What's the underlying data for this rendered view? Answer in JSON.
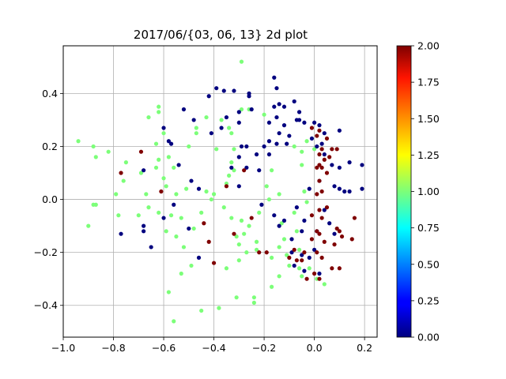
{
  "chart_data": {
    "type": "scatter",
    "title": "2017/06/{03, 06, 13} 2d plot",
    "xlabel": "",
    "ylabel": "",
    "xlim": [
      -1.0,
      0.25
    ],
    "ylim": [
      -0.52,
      0.58
    ],
    "xticks": [
      -1.0,
      -0.8,
      -0.6,
      -0.4,
      -0.2,
      0.0,
      0.2
    ],
    "xtick_labels": [
      "−1.0",
      "−0.8",
      "−0.6",
      "−0.4",
      "−0.2",
      "0.0",
      "0.2"
    ],
    "yticks": [
      -0.4,
      -0.2,
      0.0,
      0.2,
      0.4
    ],
    "ytick_labels": [
      "−0.4",
      "−0.2",
      "0.0",
      "0.2",
      "0.4"
    ],
    "grid": true,
    "colorbar": {
      "min": 0.0,
      "max": 2.0,
      "colormap": "jet",
      "ticks": [
        0.0,
        0.25,
        0.5,
        0.75,
        1.0,
        1.25,
        1.5,
        1.75,
        2.0
      ],
      "tick_labels": [
        "0.00",
        "0.25",
        "0.50",
        "0.75",
        "1.00",
        "1.25",
        "1.50",
        "1.75",
        "2.00"
      ]
    },
    "colors": {
      "0": "#00007f",
      "1": "#7cff79",
      "2": "#7f0000"
    },
    "points": [
      [
        -0.94,
        0.22,
        1
      ],
      [
        -0.88,
        0.2,
        1
      ],
      [
        -0.87,
        0.16,
        1
      ],
      [
        -0.82,
        0.18,
        1
      ],
      [
        -0.87,
        -0.02,
        1
      ],
      [
        -0.88,
        -0.02,
        1
      ],
      [
        -0.9,
        -0.1,
        1
      ],
      [
        -0.79,
        0.02,
        1
      ],
      [
        -0.78,
        -0.06,
        1
      ],
      [
        -0.7,
        -0.06,
        1
      ],
      [
        -0.66,
        0.31,
        1
      ],
      [
        -0.62,
        0.35,
        1
      ],
      [
        -0.62,
        0.33,
        1
      ],
      [
        -0.6,
        0.25,
        1
      ],
      [
        -0.63,
        0.21,
        1
      ],
      [
        -0.62,
        0.15,
        1
      ],
      [
        -0.58,
        0.16,
        1
      ],
      [
        -0.63,
        0.12,
        1
      ],
      [
        -0.6,
        0.08,
        1
      ],
      [
        -0.56,
        0.12,
        1
      ],
      [
        -0.67,
        0.02,
        1
      ],
      [
        -0.66,
        -0.03,
        1
      ],
      [
        -0.62,
        -0.05,
        1
      ],
      [
        -0.57,
        -0.06,
        1
      ],
      [
        -0.53,
        -0.07,
        1
      ],
      [
        -0.55,
        0.02,
        1
      ],
      [
        -0.59,
        -0.12,
        1
      ],
      [
        -0.55,
        -0.14,
        1
      ],
      [
        -0.52,
        -0.18,
        1
      ],
      [
        -0.48,
        -0.11,
        1
      ],
      [
        -0.47,
        0.25,
        1
      ],
      [
        -0.47,
        0.27,
        1
      ],
      [
        -0.43,
        0.31,
        1
      ],
      [
        -0.37,
        0.3,
        1
      ],
      [
        -0.34,
        0.27,
        1
      ],
      [
        -0.33,
        0.25,
        1
      ],
      [
        -0.32,
        0.19,
        1
      ],
      [
        -0.29,
        0.52,
        1
      ],
      [
        -0.29,
        0.34,
        1
      ],
      [
        -0.39,
        0.19,
        1
      ],
      [
        -0.33,
        0.14,
        1
      ],
      [
        -0.32,
        0.11,
        1
      ],
      [
        -0.35,
        0.06,
        1
      ],
      [
        -0.4,
        0.02,
        1
      ],
      [
        -0.41,
        0.0,
        1
      ],
      [
        -0.36,
        -0.03,
        1
      ],
      [
        -0.33,
        -0.07,
        1
      ],
      [
        -0.29,
        -0.08,
        1
      ],
      [
        -0.31,
        -0.14,
        1
      ],
      [
        -0.3,
        -0.17,
        1
      ],
      [
        -0.28,
        -0.13,
        1
      ],
      [
        -0.26,
        -0.1,
        1
      ],
      [
        -0.23,
        -0.16,
        1
      ],
      [
        -0.23,
        -0.19,
        1
      ],
      [
        -0.27,
        -0.2,
        1
      ],
      [
        -0.3,
        -0.23,
        1
      ],
      [
        -0.35,
        -0.26,
        1
      ],
      [
        -0.38,
        -0.41,
        1
      ],
      [
        -0.31,
        -0.37,
        1
      ],
      [
        -0.24,
        -0.37,
        1
      ],
      [
        -0.24,
        -0.39,
        1
      ],
      [
        -0.17,
        -0.33,
        1
      ],
      [
        -0.2,
        0.32,
        1
      ],
      [
        -0.19,
        0.05,
        1
      ],
      [
        -0.14,
        0.02,
        1
      ],
      [
        -0.13,
        -0.09,
        1
      ],
      [
        -0.12,
        -0.15,
        1
      ],
      [
        -0.11,
        -0.21,
        1
      ],
      [
        -0.1,
        -0.25,
        1
      ],
      [
        -0.14,
        -0.29,
        1
      ],
      [
        -0.17,
        -0.22,
        1
      ],
      [
        -0.05,
        0.18,
        1
      ],
      [
        -0.05,
        0.13,
        1
      ],
      [
        -0.04,
        0.03,
        1
      ],
      [
        -0.03,
        -0.01,
        1
      ],
      [
        -0.07,
        -0.12,
        1
      ],
      [
        -0.06,
        -0.19,
        1
      ],
      [
        -0.06,
        -0.26,
        1
      ],
      [
        -0.05,
        -0.29,
        1
      ],
      [
        -0.02,
        -0.26,
        1
      ],
      [
        0.01,
        -0.3,
        1
      ],
      [
        0.04,
        -0.32,
        1
      ],
      [
        -0.5,
        0.2,
        1
      ],
      [
        -0.45,
        -0.05,
        1
      ],
      [
        -0.18,
        0.0,
        1
      ],
      [
        -0.56,
        -0.46,
        1
      ],
      [
        -0.58,
        -0.35,
        1
      ],
      [
        -0.45,
        -0.42,
        1
      ],
      [
        -0.53,
        -0.28,
        1
      ],
      [
        -0.49,
        -0.25,
        1
      ],
      [
        -0.43,
        0.03,
        1
      ],
      [
        -0.69,
        0.1,
        1
      ],
      [
        -0.75,
        0.14,
        1
      ],
      [
        -0.76,
        0.07,
        1
      ],
      [
        -0.34,
        0.09,
        1
      ],
      [
        -0.17,
        0.11,
        1
      ],
      [
        -0.26,
        0.34,
        1
      ],
      [
        -0.08,
        0.2,
        1
      ],
      [
        -0.03,
        0.22,
        1
      ],
      [
        0.0,
        0.19,
        1
      ],
      [
        -0.51,
        0.04,
        1
      ],
      [
        -0.59,
        0.05,
        1
      ],
      [
        -0.22,
        -0.05,
        1
      ],
      [
        -0.14,
        -0.18,
        1
      ],
      [
        -0.08,
        -0.05,
        1
      ],
      [
        -0.39,
        0.42,
        0
      ],
      [
        -0.42,
        0.39,
        0
      ],
      [
        -0.36,
        0.41,
        0
      ],
      [
        -0.32,
        0.41,
        0
      ],
      [
        -0.26,
        0.4,
        0
      ],
      [
        -0.26,
        0.39,
        0
      ],
      [
        -0.3,
        0.33,
        0
      ],
      [
        -0.35,
        0.31,
        0
      ],
      [
        -0.37,
        0.27,
        0
      ],
      [
        -0.3,
        0.29,
        0
      ],
      [
        -0.25,
        0.34,
        0
      ],
      [
        -0.16,
        0.46,
        0
      ],
      [
        -0.15,
        0.42,
        0
      ],
      [
        -0.14,
        0.36,
        0
      ],
      [
        -0.16,
        0.35,
        0
      ],
      [
        -0.12,
        0.35,
        0
      ],
      [
        -0.08,
        0.37,
        0
      ],
      [
        -0.06,
        0.33,
        0
      ],
      [
        -0.04,
        0.29,
        0
      ],
      [
        -0.07,
        0.3,
        0
      ],
      [
        -0.15,
        0.31,
        0
      ],
      [
        -0.18,
        0.29,
        0
      ],
      [
        -0.12,
        0.28,
        0
      ],
      [
        -0.14,
        0.25,
        0
      ],
      [
        -0.1,
        0.24,
        0
      ],
      [
        -0.06,
        0.3,
        0
      ],
      [
        0.0,
        0.29,
        0
      ],
      [
        0.02,
        0.28,
        0
      ],
      [
        -0.01,
        0.23,
        0
      ],
      [
        0.03,
        0.21,
        0
      ],
      [
        0.1,
        0.26,
        0
      ],
      [
        0.04,
        0.25,
        0
      ],
      [
        0.01,
        0.2,
        0
      ],
      [
        -0.11,
        0.21,
        0
      ],
      [
        -0.15,
        0.21,
        0
      ],
      [
        -0.18,
        0.22,
        0
      ],
      [
        -0.2,
        0.2,
        0
      ],
      [
        -0.23,
        0.17,
        0
      ],
      [
        -0.27,
        0.2,
        0
      ],
      [
        -0.29,
        0.2,
        0
      ],
      [
        -0.3,
        0.16,
        0
      ],
      [
        -0.33,
        0.12,
        0
      ],
      [
        -0.27,
        0.12,
        0
      ],
      [
        -0.22,
        0.11,
        0
      ],
      [
        -0.3,
        0.05,
        0
      ],
      [
        -0.21,
        -0.02,
        0
      ],
      [
        -0.16,
        -0.06,
        0
      ],
      [
        -0.12,
        -0.08,
        0
      ],
      [
        -0.14,
        -0.1,
        0
      ],
      [
        -0.04,
        -0.08,
        0
      ],
      [
        -0.05,
        -0.12,
        0
      ],
      [
        -0.09,
        -0.15,
        0
      ],
      [
        -0.09,
        -0.2,
        0
      ],
      [
        -0.05,
        -0.21,
        0
      ],
      [
        -0.02,
        -0.22,
        0
      ],
      [
        -0.08,
        -0.25,
        0
      ],
      [
        -0.04,
        -0.27,
        0
      ],
      [
        0.02,
        -0.28,
        0
      ],
      [
        0.0,
        -0.19,
        0
      ],
      [
        0.01,
        -0.12,
        0
      ],
      [
        0.07,
        0.13,
        0
      ],
      [
        0.1,
        0.12,
        0
      ],
      [
        0.14,
        0.14,
        0
      ],
      [
        0.19,
        0.13,
        0
      ],
      [
        0.08,
        0.05,
        0
      ],
      [
        0.1,
        0.04,
        0
      ],
      [
        0.12,
        0.03,
        0
      ],
      [
        0.14,
        0.03,
        0
      ],
      [
        0.19,
        0.04,
        0
      ],
      [
        0.04,
        -0.04,
        0
      ],
      [
        0.06,
        -0.09,
        0
      ],
      [
        0.08,
        -0.13,
        0
      ],
      [
        -0.65,
        -0.18,
        0
      ],
      [
        -0.6,
        -0.07,
        0
      ],
      [
        -0.56,
        -0.02,
        0
      ],
      [
        -0.54,
        0.13,
        0
      ],
      [
        -0.57,
        0.21,
        0
      ],
      [
        -0.58,
        0.22,
        0
      ],
      [
        -0.6,
        0.27,
        0
      ],
      [
        -0.52,
        0.34,
        0
      ],
      [
        -0.48,
        0.3,
        0
      ],
      [
        -0.49,
        0.07,
        0
      ],
      [
        -0.46,
        0.04,
        0
      ],
      [
        -0.5,
        -0.11,
        0
      ],
      [
        -0.46,
        -0.22,
        0
      ],
      [
        -0.68,
        0.11,
        0
      ],
      [
        -0.68,
        -0.1,
        0
      ],
      [
        -0.68,
        -0.12,
        0
      ],
      [
        -0.77,
        -0.13,
        0
      ],
      [
        -0.41,
        0.25,
        0
      ],
      [
        -0.07,
        -0.03,
        0
      ],
      [
        -0.02,
        0.04,
        0
      ],
      [
        0.02,
        0.07,
        0
      ],
      [
        -0.18,
        0.17,
        0
      ],
      [
        0.04,
        0.17,
        0
      ],
      [
        -0.69,
        0.18,
        2
      ],
      [
        -0.77,
        0.1,
        2
      ],
      [
        -0.61,
        0.03,
        2
      ],
      [
        -0.42,
        -0.16,
        2
      ],
      [
        -0.4,
        -0.24,
        2
      ],
      [
        -0.44,
        -0.09,
        2
      ],
      [
        -0.35,
        0.05,
        2
      ],
      [
        -0.28,
        0.11,
        2
      ],
      [
        -0.32,
        -0.13,
        2
      ],
      [
        -0.25,
        -0.07,
        2
      ],
      [
        -0.22,
        -0.2,
        2
      ],
      [
        -0.19,
        -0.2,
        2
      ],
      [
        0.02,
        0.26,
        2
      ],
      [
        0.05,
        0.23,
        2
      ],
      [
        0.07,
        0.19,
        2
      ],
      [
        0.09,
        0.19,
        2
      ],
      [
        0.03,
        0.19,
        2
      ],
      [
        0.02,
        0.17,
        2
      ],
      [
        0.04,
        0.15,
        2
      ],
      [
        0.02,
        0.13,
        2
      ],
      [
        0.01,
        0.12,
        2
      ],
      [
        0.03,
        0.12,
        2
      ],
      [
        0.05,
        0.1,
        2
      ],
      [
        0.02,
        0.07,
        2
      ],
      [
        0.03,
        0.03,
        2
      ],
      [
        0.01,
        0.02,
        2
      ],
      [
        0.02,
        -0.04,
        2
      ],
      [
        -0.01,
        -0.06,
        2
      ],
      [
        0.03,
        -0.07,
        2
      ],
      [
        0.01,
        -0.12,
        2
      ],
      [
        0.02,
        -0.13,
        2
      ],
      [
        -0.01,
        -0.15,
        2
      ],
      [
        0.04,
        -0.16,
        2
      ],
      [
        0.01,
        -0.2,
        2
      ],
      [
        0.03,
        -0.22,
        2
      ],
      [
        -0.04,
        -0.2,
        2
      ],
      [
        -0.05,
        -0.23,
        2
      ],
      [
        -0.07,
        -0.23,
        2
      ],
      [
        -0.03,
        -0.3,
        2
      ],
      [
        0.02,
        -0.3,
        2
      ],
      [
        0.07,
        -0.26,
        2
      ],
      [
        0.1,
        -0.26,
        2
      ],
      [
        0.08,
        -0.17,
        2
      ],
      [
        0.1,
        -0.12,
        2
      ],
      [
        0.11,
        -0.14,
        2
      ],
      [
        0.15,
        -0.15,
        2
      ],
      [
        0.16,
        -0.07,
        2
      ],
      [
        0.09,
        -0.11,
        2
      ],
      [
        -0.01,
        0.27,
        2
      ],
      [
        0.01,
        0.24,
        2
      ],
      [
        -0.08,
        -0.19,
        2
      ],
      [
        -0.1,
        -0.22,
        2
      ],
      [
        0.0,
        -0.28,
        2
      ],
      [
        0.05,
        -0.03,
        2
      ],
      [
        0.06,
        0.16,
        2
      ]
    ]
  }
}
